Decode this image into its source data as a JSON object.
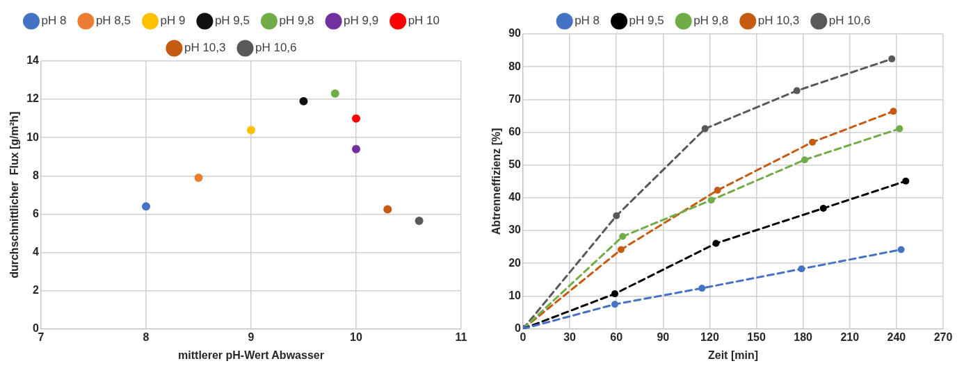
{
  "chart_data": [
    {
      "type": "scatter",
      "xlabel": "mittlerer pH-Wert Abwasser",
      "ylabel": "durchschnittlicher  Flux [g/m²h]",
      "xlim": [
        7,
        11
      ],
      "xticks": [
        7,
        8,
        9,
        10,
        11
      ],
      "ylim": [
        0,
        14
      ],
      "yticks": [
        0,
        2,
        4,
        6,
        8,
        10,
        12,
        14
      ],
      "grid": true,
      "legend": "top",
      "marker": "circle",
      "series": [
        {
          "name": "pH 8",
          "color": "#4472c4",
          "x": [
            8
          ],
          "values": [
            6.4
          ]
        },
        {
          "name": "pH 8,5",
          "color": "#ed7d31",
          "x": [
            8.5
          ],
          "values": [
            7.9
          ]
        },
        {
          "name": "pH 9",
          "color": "#ffc000",
          "x": [
            9
          ],
          "values": [
            10.4
          ]
        },
        {
          "name": "pH 9,5",
          "color": "#111111",
          "x": [
            9.5
          ],
          "values": [
            11.9
          ]
        },
        {
          "name": "pH 9,8",
          "color": "#70ad47",
          "x": [
            9.8
          ],
          "values": [
            12.3
          ]
        },
        {
          "name": "pH 9,9",
          "color": "#7030a0",
          "x": [
            10
          ],
          "values": [
            9.4
          ]
        },
        {
          "name": "pH 10",
          "color": "#ff0000",
          "x": [
            10
          ],
          "values": [
            11
          ]
        },
        {
          "name": "pH 10,3",
          "color": "#c55a11",
          "x": [
            10.3
          ],
          "values": [
            6.25
          ]
        },
        {
          "name": "pH 10,6",
          "color": "#595959",
          "x": [
            10.6
          ],
          "values": [
            5.65
          ]
        }
      ]
    },
    {
      "type": "line",
      "xlabel": "Zeit [min]",
      "ylabel": "Abtrenneffizienz [%]",
      "xlim": [
        0,
        270
      ],
      "xticks": [
        0,
        30,
        60,
        90,
        120,
        150,
        180,
        210,
        240,
        270
      ],
      "ylim": [
        0,
        90
      ],
      "yticks": [
        0,
        10,
        20,
        30,
        40,
        50,
        60,
        70,
        80,
        90
      ],
      "grid": true,
      "legend": "top",
      "marker": "circle",
      "line_style": "dashed",
      "series": [
        {
          "name": "pH 8",
          "color": "#4472c4",
          "x": [
            0,
            59,
            115,
            179,
            243
          ],
          "values": [
            0,
            7.5,
            12.4,
            18.3,
            24.2
          ]
        },
        {
          "name": "pH 9,5",
          "color": "#000000",
          "x": [
            0,
            59,
            124,
            193,
            246
          ],
          "values": [
            0,
            10.7,
            26.1,
            36.8,
            45.1
          ]
        },
        {
          "name": "pH 9,8",
          "color": "#70ad47",
          "x": [
            0,
            64,
            121,
            181,
            242
          ],
          "values": [
            0,
            28.2,
            39.3,
            51.6,
            61.1
          ]
        },
        {
          "name": "pH 10,3",
          "color": "#c55a11",
          "x": [
            0,
            63,
            125,
            186,
            238
          ],
          "values": [
            0,
            24.2,
            42.3,
            57,
            66.4
          ]
        },
        {
          "name": "pH 10,6",
          "color": "#595959",
          "x": [
            0,
            60,
            117,
            176,
            237
          ],
          "values": [
            0,
            34.5,
            61.1,
            72.7,
            82.4
          ]
        }
      ]
    }
  ]
}
